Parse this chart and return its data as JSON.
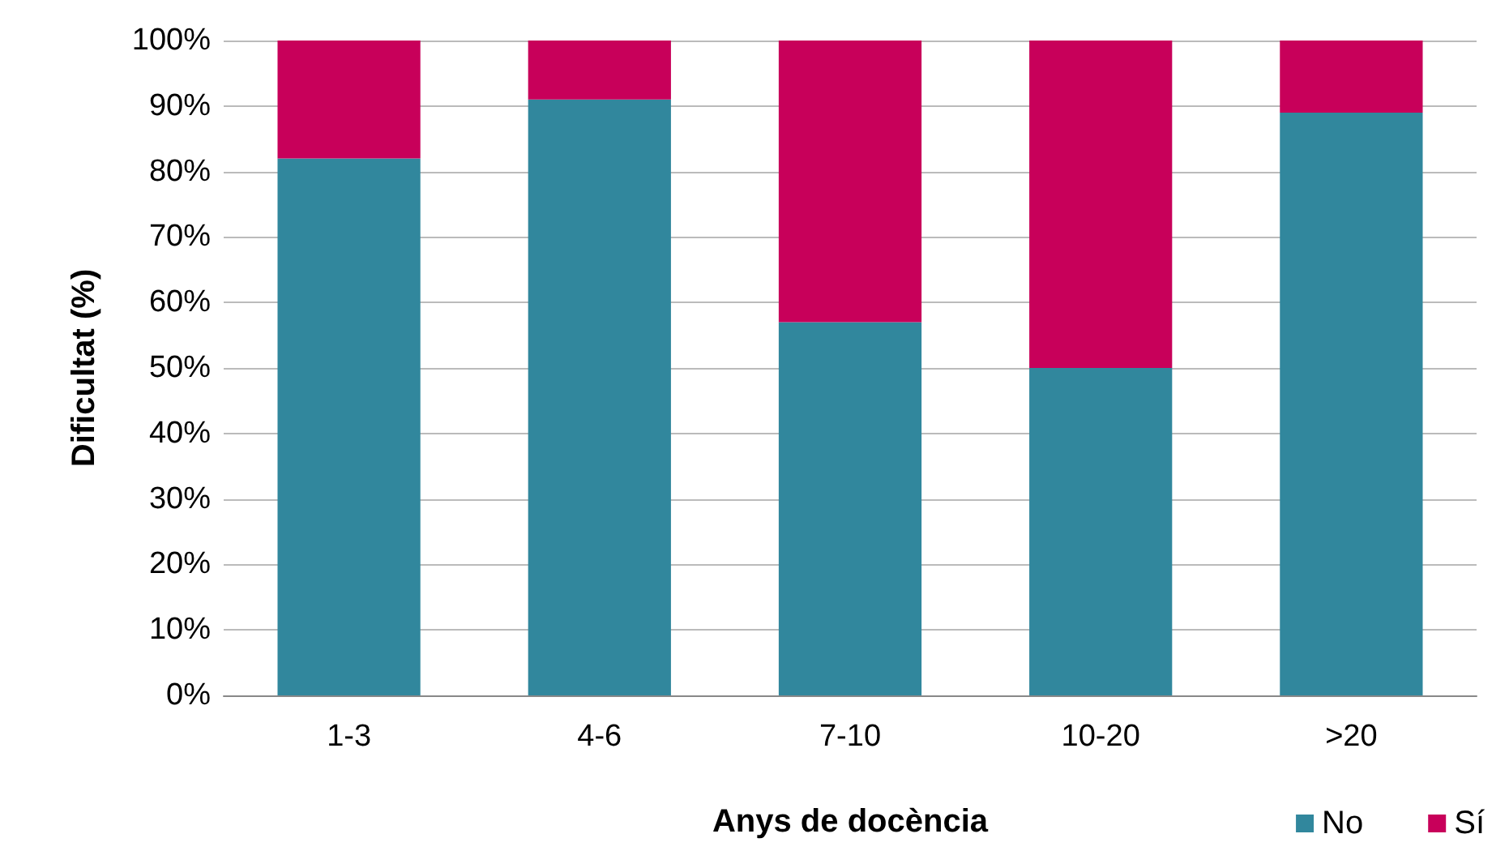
{
  "chart_data": {
    "type": "bar",
    "stacked": true,
    "xlabel": "Anys de docència",
    "ylabel": "Dificultat (%)",
    "categories": [
      "1-3",
      "4-6",
      "7-10",
      "10-20",
      ">20"
    ],
    "series": [
      {
        "name": "No",
        "color": "#31879d",
        "values": [
          82,
          91,
          57,
          50,
          89
        ]
      },
      {
        "name": "Sí",
        "color": "#c8005a",
        "values": [
          18,
          9,
          43,
          50,
          11
        ]
      }
    ],
    "ylim": [
      0,
      100
    ],
    "yticks": [
      {
        "value": 0,
        "label": "0%"
      },
      {
        "value": 10,
        "label": "10%"
      },
      {
        "value": 20,
        "label": "20%"
      },
      {
        "value": 30,
        "label": "30%"
      },
      {
        "value": 40,
        "label": "40%"
      },
      {
        "value": 50,
        "label": "50%"
      },
      {
        "value": 60,
        "label": "60%"
      },
      {
        "value": 70,
        "label": "70%"
      },
      {
        "value": 80,
        "label": "80%"
      },
      {
        "value": 90,
        "label": "90%"
      },
      {
        "value": 100,
        "label": "100%"
      }
    ],
    "grid": "y",
    "legend": "bottom right"
  }
}
